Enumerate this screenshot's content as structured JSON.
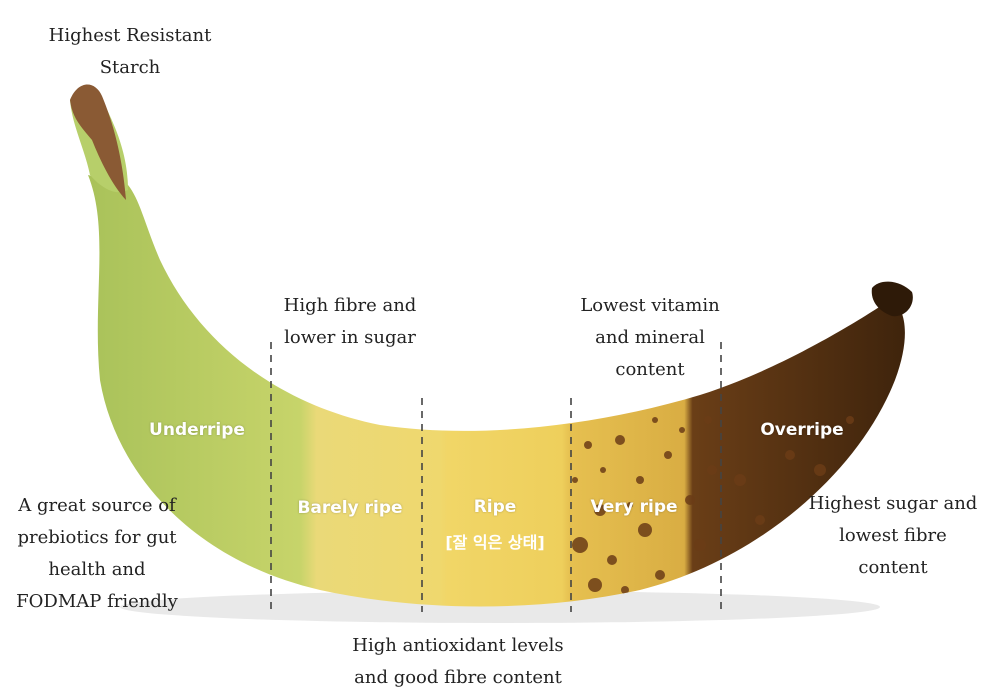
{
  "stages": [
    {
      "label": "Underripe",
      "sub": ""
    },
    {
      "label": "Barely ripe",
      "sub": ""
    },
    {
      "label": "Ripe",
      "sub": "[잘 익은 상태]"
    },
    {
      "label": "Very ripe",
      "sub": ""
    },
    {
      "label": "Overripe",
      "sub": ""
    }
  ],
  "notes": {
    "stem": "Highest Resistant\nStarch",
    "underripe": "A great source of\nprebiotics for gut\nhealth and\nFODMAP friendly",
    "barely_ripe": "High fibre and\nlower in sugar",
    "ripe": "High antioxidant levels\nand good fibre content",
    "very_ripe": "Lowest vitamin\nand mineral\ncontent",
    "overripe": "Highest sugar and\nlowest fibre\ncontent"
  },
  "colors": {
    "underripe": "#b3c95a",
    "barely_ripe": "#ecd977",
    "ripe": "#f1d667",
    "very_ripe": "#e8c251",
    "overripe": "#5a3314",
    "spot": "#6b3d17",
    "divider": "#444444"
  }
}
